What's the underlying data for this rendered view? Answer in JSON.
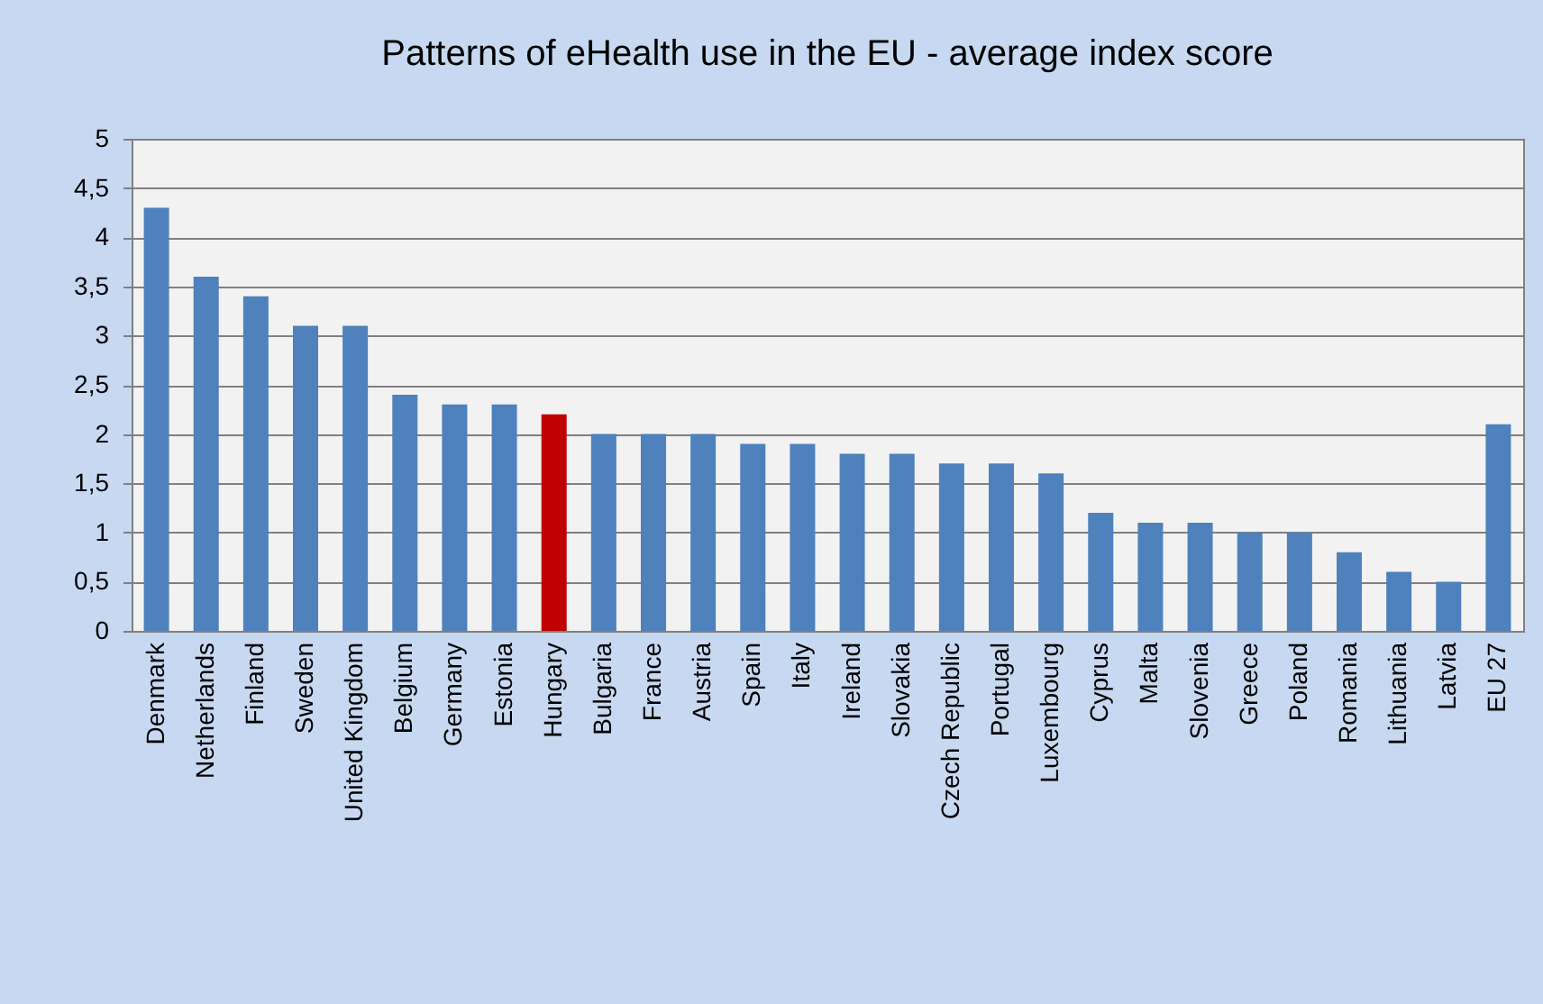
{
  "chart_data": {
    "type": "bar",
    "title": "Patterns of eHealth use in the EU - average index score",
    "categories": [
      "Denmark",
      "Netherlands",
      "Finland",
      "Sweden",
      "United Kingdom",
      "Belgium",
      "Germany",
      "Estonia",
      "Hungary",
      "Bulgaria",
      "France",
      "Austria",
      "Spain",
      "Italy",
      "Ireland",
      "Slovakia",
      "Czech Republic",
      "Portugal",
      "Luxembourg",
      "Cyprus",
      "Malta",
      "Slovenia",
      "Greece",
      "Poland",
      "Romania",
      "Lithuania",
      "Latvia",
      "EU 27"
    ],
    "values": [
      4.3,
      3.6,
      3.4,
      3.1,
      3.1,
      2.4,
      2.3,
      2.3,
      2.2,
      2,
      2,
      2,
      1.9,
      1.9,
      1.8,
      1.8,
      1.7,
      1.7,
      1.6,
      1.2,
      1.1,
      1.1,
      1,
      1,
      0.8,
      0.6,
      0.5,
      2.1
    ],
    "colors": [
      "#4f81bd",
      "#4f81bd",
      "#4f81bd",
      "#4f81bd",
      "#4f81bd",
      "#4f81bd",
      "#4f81bd",
      "#4f81bd",
      "#c00000",
      "#4f81bd",
      "#4f81bd",
      "#4f81bd",
      "#4f81bd",
      "#4f81bd",
      "#4f81bd",
      "#4f81bd",
      "#4f81bd",
      "#4f81bd",
      "#4f81bd",
      "#4f81bd",
      "#4f81bd",
      "#4f81bd",
      "#4f81bd",
      "#4f81bd",
      "#4f81bd",
      "#4f81bd",
      "#4f81bd",
      "#4f81bd"
    ],
    "ylim": [
      0,
      5
    ],
    "yticks": [
      0,
      {
        "value": 0.5,
        "label": "0,5"
      },
      1,
      {
        "value": 1.5,
        "label": "1,5"
      },
      2,
      {
        "value": 2.5,
        "label": "2,5"
      },
      3,
      {
        "value": 3.5,
        "label": "3,5"
      },
      4,
      {
        "value": 4.5,
        "label": "4,5"
      },
      5
    ],
    "grid": "y",
    "legend": false
  }
}
